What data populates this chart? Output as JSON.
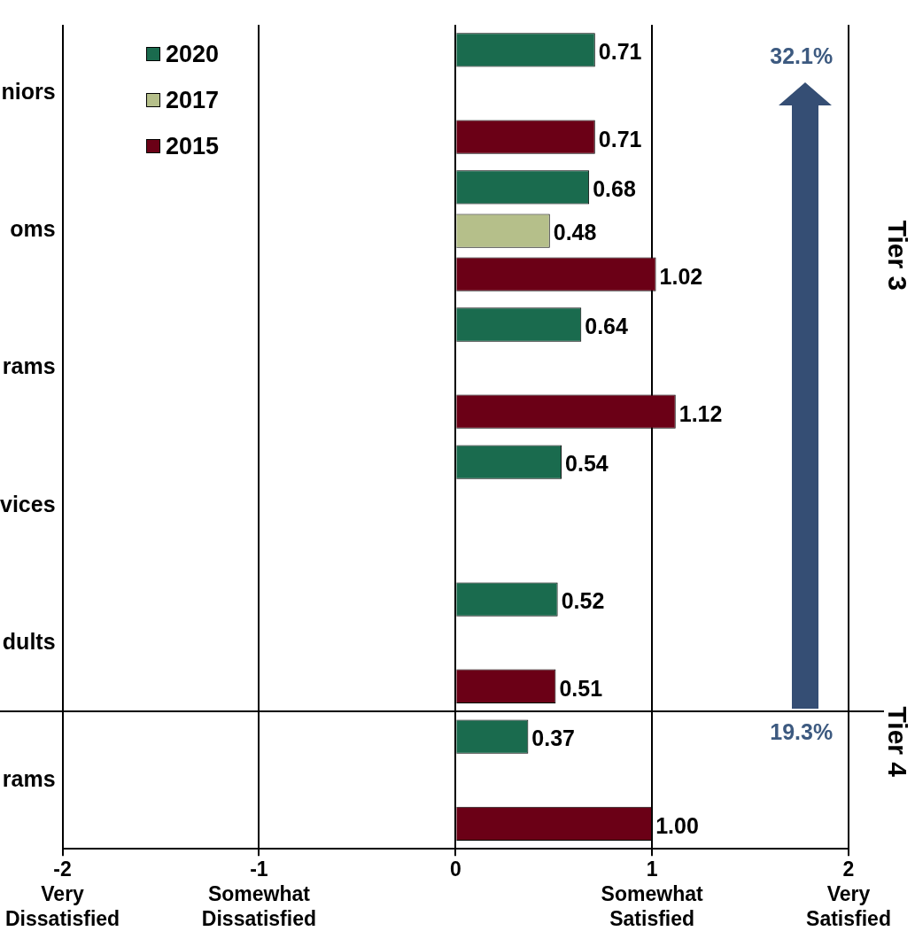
{
  "chart_data": {
    "type": "bar",
    "orientation": "horizontal",
    "categories": [
      "niors",
      "oms",
      "rams",
      "vices",
      "dults",
      "rams"
    ],
    "series": [
      {
        "name": "2020",
        "color": "#1a6b4e",
        "values": [
          0.71,
          0.68,
          0.64,
          0.54,
          0.52,
          0.37
        ],
        "value_labels": [
          "0.71",
          "0.68",
          "0.64",
          "0.54",
          "0.52",
          "0.37"
        ]
      },
      {
        "name": "2017",
        "color": "#b5bf8a",
        "values": [
          null,
          0.48,
          null,
          null,
          null,
          null
        ],
        "value_labels": [
          null,
          "0.48",
          null,
          null,
          null,
          null
        ]
      },
      {
        "name": "2015",
        "color": "#6b0016",
        "values": [
          0.71,
          1.02,
          1.12,
          null,
          0.51,
          1.0
        ],
        "value_labels": [
          "0.71",
          "1.02",
          "1.12",
          null,
          "0.51",
          "1.00"
        ]
      }
    ],
    "xlim": [
      -2,
      2
    ],
    "xticks": [
      {
        "value": -2,
        "label": "-2\nVery\nDissatisfied"
      },
      {
        "value": -1,
        "label": "-1\nSomewhat\nDissatisfied"
      },
      0,
      {
        "value": 1,
        "label": "1\nSomewhat\nSatisfied"
      },
      {
        "value": 2,
        "label": "2\nVery\nSatisfied"
      }
    ],
    "grid": "x",
    "legend": "top left",
    "annotations": [
      "32.1%",
      "19.3%",
      "Tier 3",
      "Tier 4"
    ]
  }
}
